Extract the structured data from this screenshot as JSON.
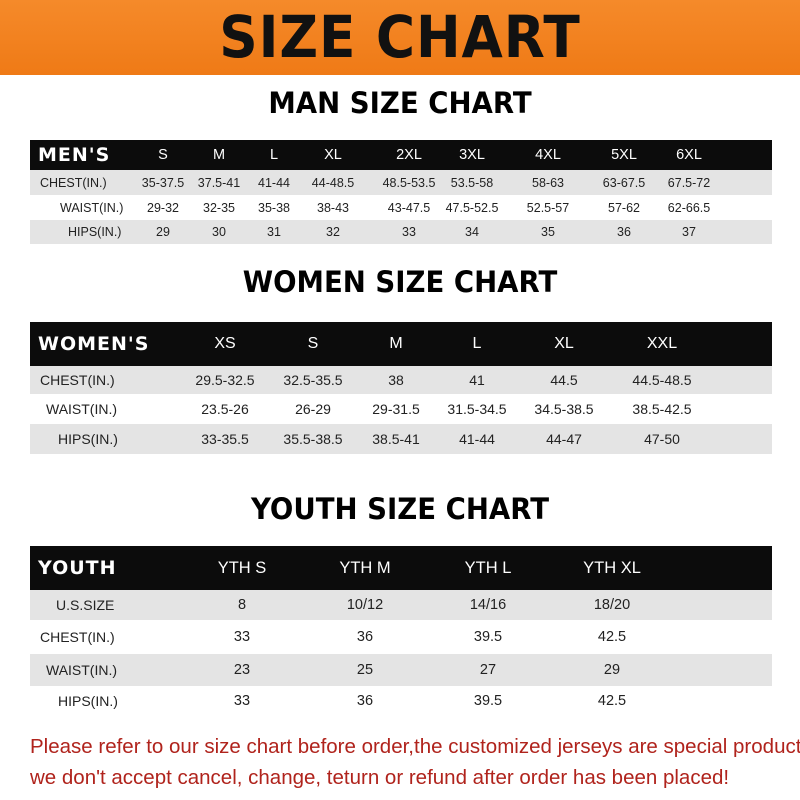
{
  "title": "SIZE CHART",
  "men": {
    "title": "MAN SIZE CHART",
    "header": "MEN'S",
    "sizes": [
      "S",
      "M",
      "L",
      "XL",
      "2XL",
      "3XL",
      "4XL",
      "5XL",
      "6XL"
    ],
    "rows": [
      {
        "label": "CHEST(IN.)",
        "values": [
          "35-37.5",
          "37.5-41",
          "41-44",
          "44-48.5",
          "48.5-53.5",
          "53.5-58",
          "58-63",
          "63-67.5",
          "67.5-72"
        ]
      },
      {
        "label": "WAIST(IN.)",
        "values": [
          "29-32",
          "32-35",
          "35-38",
          "38-43",
          "43-47.5",
          "47.5-52.5",
          "52.5-57",
          "57-62",
          "62-66.5"
        ]
      },
      {
        "label": "HIPS(IN.)",
        "values": [
          "29",
          "30",
          "31",
          "32",
          "33",
          "34",
          "35",
          "36",
          "37"
        ]
      }
    ]
  },
  "women": {
    "title": "WOMEN SIZE CHART",
    "header": "WOMEN'S",
    "sizes": [
      "XS",
      "S",
      "M",
      "L",
      "XL",
      "XXL"
    ],
    "rows": [
      {
        "label": "CHEST(IN.)",
        "values": [
          "29.5-32.5",
          "32.5-35.5",
          "38",
          "41",
          "44.5",
          "44.5-48.5"
        ]
      },
      {
        "label": "WAIST(IN.)",
        "values": [
          "23.5-26",
          "26-29",
          "29-31.5",
          "31.5-34.5",
          "34.5-38.5",
          "38.5-42.5"
        ]
      },
      {
        "label": "HIPS(IN.)",
        "values": [
          "33-35.5",
          "35.5-38.5",
          "38.5-41",
          "41-44",
          "44-47",
          "47-50"
        ]
      }
    ]
  },
  "youth": {
    "title": "YOUTH SIZE CHART",
    "header": "YOUTH",
    "sizes": [
      "YTH S",
      "YTH M",
      "YTH L",
      "YTH XL"
    ],
    "rows": [
      {
        "label": "U.S.SIZE",
        "values": [
          "8",
          "10/12",
          "14/16",
          "18/20"
        ]
      },
      {
        "label": "CHEST(IN.)",
        "values": [
          "33",
          "36",
          "39.5",
          "42.5"
        ]
      },
      {
        "label": "WAIST(IN.)",
        "values": [
          "23",
          "25",
          "27",
          "29"
        ]
      },
      {
        "label": "HIPS(IN.)",
        "values": [
          "33",
          "36",
          "39.5",
          "42.5"
        ]
      }
    ]
  },
  "notice": {
    "line1": "Please refer to our size chart before order,the customized jerseys are special products,",
    "line2": "we don't accept cancel, change, teturn or refund after order has been placed!"
  }
}
